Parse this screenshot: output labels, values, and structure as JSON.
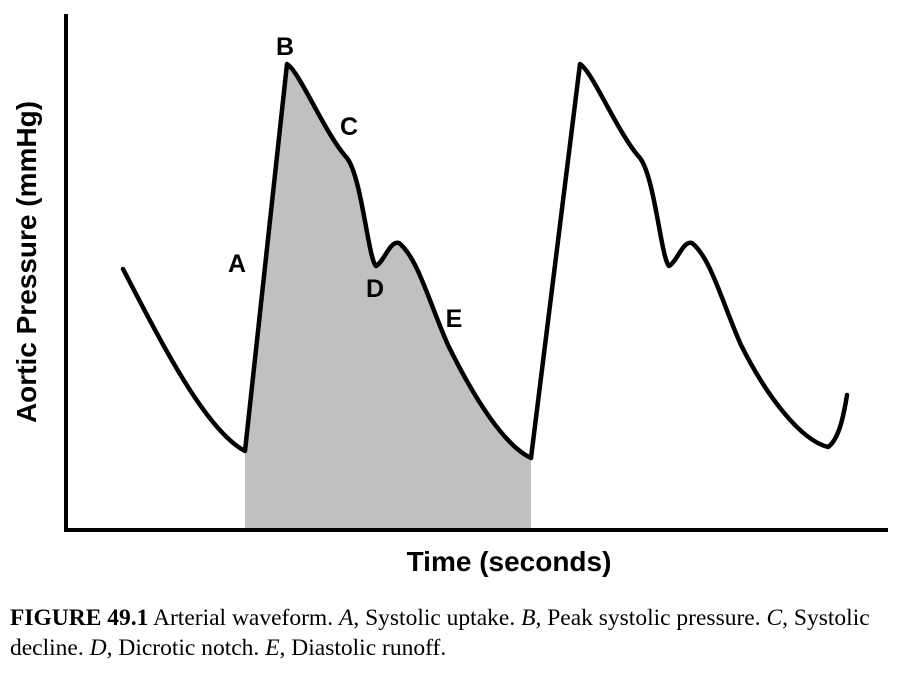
{
  "figure": {
    "y_axis_label": "Aortic Pressure (mmHg)",
    "x_axis_label": "Time (seconds)",
    "point_labels": {
      "a": "A",
      "b": "B",
      "c": "C",
      "d": "D",
      "e": "E"
    },
    "colors": {
      "line": "#000000",
      "shade": "#c0c0c0"
    }
  },
  "caption": {
    "figure_number": "FIGURE 49.1",
    "title": "Arterial waveform.",
    "items": [
      {
        "letter": "A",
        "text": ", Systolic uptake."
      },
      {
        "letter": "B",
        "text": ", Peak systolic pressure."
      },
      {
        "letter": "C",
        "text": ", Systolic decline."
      },
      {
        "letter": "D",
        "text": ", Dicrotic notch."
      },
      {
        "letter": "E",
        "text": ", Diastolic runoff."
      }
    ]
  }
}
